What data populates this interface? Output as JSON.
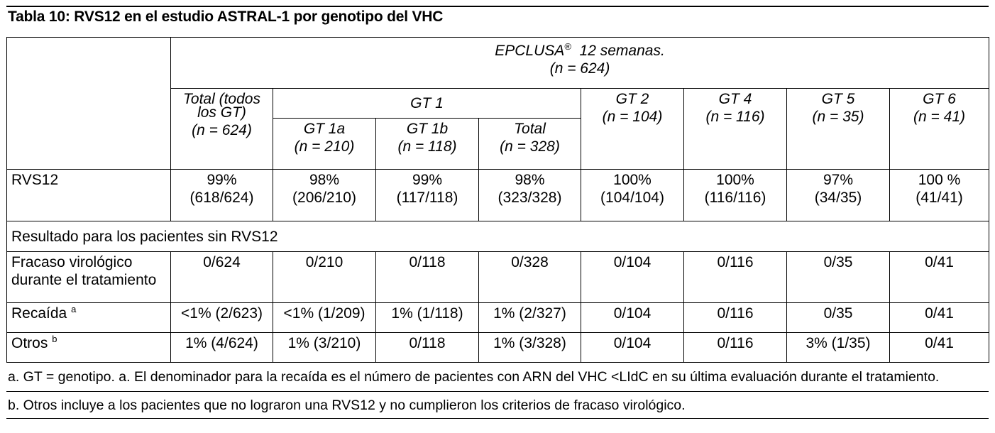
{
  "title": "Tabla 10: RVS12 en el estudio ASTRAL-1 por genotipo del VHC",
  "header": {
    "group_line1": "EPCLUSA",
    "group_reg": "®",
    "group_line1_tail": "  12 semanas.",
    "group_line2": "(n = 624)",
    "total_all_1": "Total (todos",
    "total_all_2": "los GT)",
    "total_all_3": "(n = 624)",
    "gt1": "GT 1",
    "gt1a_1": "GT 1a",
    "gt1a_2": "(n = 210)",
    "gt1b_1": "GT 1b",
    "gt1b_2": "(n = 118)",
    "gt1total_1": "Total",
    "gt1total_2": "(n = 328)",
    "gt2_1": "GT 2",
    "gt2_2": "(n = 104)",
    "gt4_1": "GT 4",
    "gt4_2": "(n = 116)",
    "gt5_1": "GT 5",
    "gt5_2": "(n = 35)",
    "gt6_1": "GT 6",
    "gt6_2": "(n = 41)"
  },
  "rows": {
    "rvs12": {
      "label": "RVS12",
      "cells": [
        [
          "99%",
          "(618/624)"
        ],
        [
          "98%",
          "(206/210)"
        ],
        [
          "99%",
          "(117/118)"
        ],
        [
          "98%",
          "(323/328)"
        ],
        [
          "100%",
          "(104/104)"
        ],
        [
          "100%",
          "(116/116)"
        ],
        [
          "97%",
          "(34/35)"
        ],
        [
          "100 %",
          "(41/41)"
        ]
      ]
    },
    "section": "Resultado para los pacientes sin RVS12",
    "fracaso": {
      "label1": "Fracaso virológico",
      "label2": "durante el tratamiento",
      "cells": [
        "0/624",
        "0/210",
        "0/118",
        "0/328",
        "0/104",
        "0/116",
        "0/35",
        "0/41"
      ]
    },
    "recaida": {
      "label": "Recaída",
      "sup": "a",
      "cells": [
        "<1% (2/623)",
        "<1% (1/209)",
        "1% (1/118)",
        "1% (2/327)",
        "0/104",
        "0/116",
        "0/35",
        "0/41"
      ]
    },
    "otros": {
      "label": "Otros",
      "sup": "b",
      "cells": [
        "1% (4/624)",
        "1% (3/210)",
        "0/118",
        "1% (3/328)",
        "0/104",
        "0/116",
        "3% (1/35)",
        "0/41"
      ]
    }
  },
  "footnotes": [
    "a. GT = genotipo. a. El denominador para la recaída es el número de pacientes con ARN del VHC <LIdC en su última evaluación durante el tratamiento.",
    "b. Otros incluye a los pacientes que no lograron una RVS12 y no cumplieron los criterios de fracaso virológico."
  ]
}
